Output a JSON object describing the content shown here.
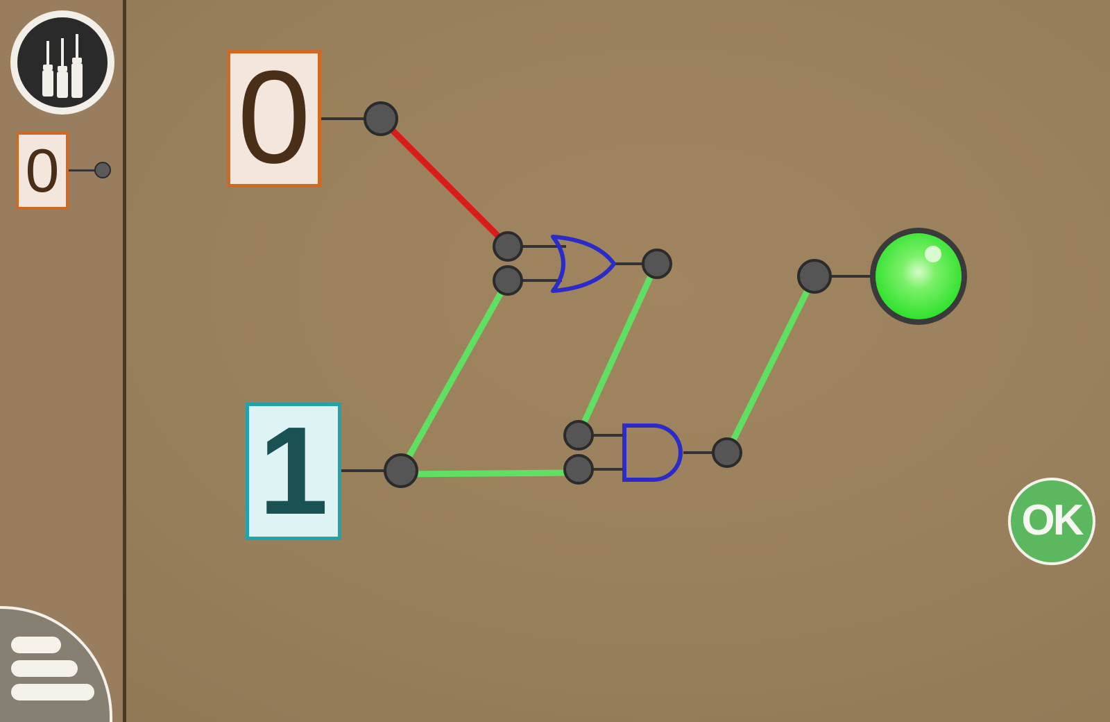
{
  "palette": {
    "switch_value": "0"
  },
  "circuit": {
    "input_a": {
      "value": "0",
      "state": "off"
    },
    "input_b": {
      "value": "1",
      "state": "on"
    },
    "gates": [
      "OR",
      "AND"
    ],
    "output_lamp": {
      "state": "on",
      "color": "#3fe63a"
    },
    "wire_colors": {
      "on": "#5fe062",
      "off": "#d81b1b",
      "stub": "#333333"
    },
    "gate_color": "#2b2bc8"
  },
  "ok_button": {
    "label": "OK"
  },
  "icons": {
    "tools": "screwdrivers-icon",
    "menu": "hamburger-menu-icon"
  }
}
